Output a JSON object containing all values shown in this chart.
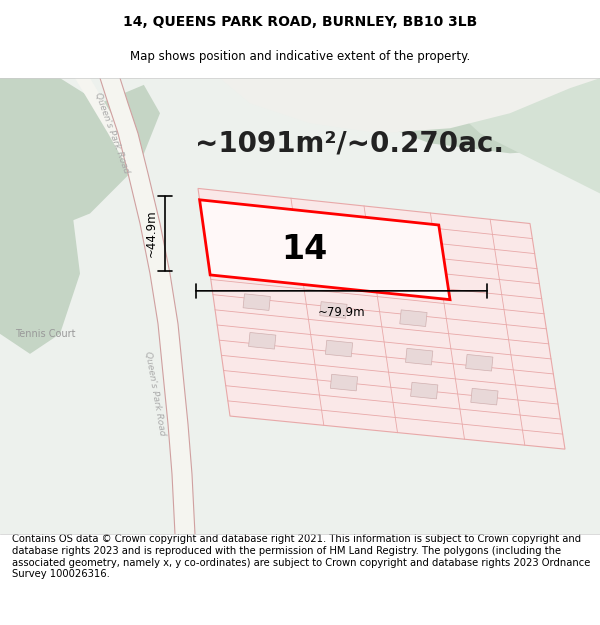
{
  "title_line1": "14, QUEENS PARK ROAD, BURNLEY, BB10 3LB",
  "title_line2": "Map shows position and indicative extent of the property.",
  "area_label": "~1091m²/~0.270ac.",
  "property_number": "14",
  "dim_height": "~44.9m",
  "dim_width": "~79.9m",
  "road_label": "Queen's Park Road",
  "tennis_label": "Tennis Court",
  "footer_text": "Contains OS data © Crown copyright and database right 2021. This information is subject to Crown copyright and database rights 2023 and is reproduced with the permission of HM Land Registry. The polygons (including the associated geometry, namely x, y co-ordinates) are subject to Crown copyright and database rights 2023 Ordnance Survey 100026316.",
  "bg_color": "#edf1ed",
  "green_dark": "#c5d5c5",
  "green_mid": "#d5e2d5",
  "road_fill": "#f5f5f0",
  "plot_fill": "#fae8e8",
  "plot_line": "#e8a8a8",
  "highlight_fill": "#fff8f8",
  "highlight_line": "#ff0000",
  "building_fill": "#e8d8d8",
  "building_edge": "#d0b0b0",
  "title_fontsize": 10,
  "subtitle_fontsize": 8.5,
  "area_fontsize": 20,
  "footer_fontsize": 7.2
}
